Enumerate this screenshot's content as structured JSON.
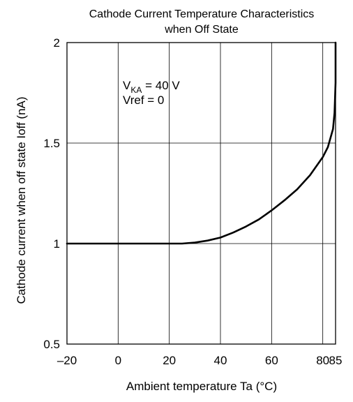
{
  "chart_data": {
    "type": "line",
    "title_line1": "Cathode Current Temperature Characteristics",
    "title_line2": "when Off State",
    "xlabel": "Ambient temperature  Ta  (°C)",
    "ylabel": "Cathode current when off state  Ioff  (nA)",
    "xlim": [
      -20,
      85
    ],
    "ylim": [
      0.5,
      2
    ],
    "x_ticks": [
      -20,
      0,
      20,
      40,
      60,
      80,
      85
    ],
    "x_tick_labels": [
      "–20",
      "0",
      "20",
      "40",
      "60",
      "80",
      "85"
    ],
    "y_ticks": [
      0.5,
      1,
      1.5,
      2
    ],
    "y_tick_labels": [
      "0.5",
      "1",
      "1.5",
      "2"
    ],
    "grid": true,
    "annotation": {
      "line1_main": "V",
      "line1_sub": "KA",
      "line1_rest": " = 40 V",
      "line2": "Vref = 0"
    },
    "series": [
      {
        "x": [
          -20,
          0,
          20,
          25,
          30,
          35,
          40,
          45,
          50,
          55,
          60,
          65,
          70,
          75,
          80,
          82,
          84,
          84.6,
          85,
          85
        ],
        "y": [
          1.0,
          1.0,
          1.0,
          1.0,
          1.005,
          1.015,
          1.03,
          1.055,
          1.085,
          1.12,
          1.165,
          1.215,
          1.27,
          1.34,
          1.43,
          1.48,
          1.57,
          1.65,
          1.8,
          2.0
        ]
      }
    ]
  }
}
